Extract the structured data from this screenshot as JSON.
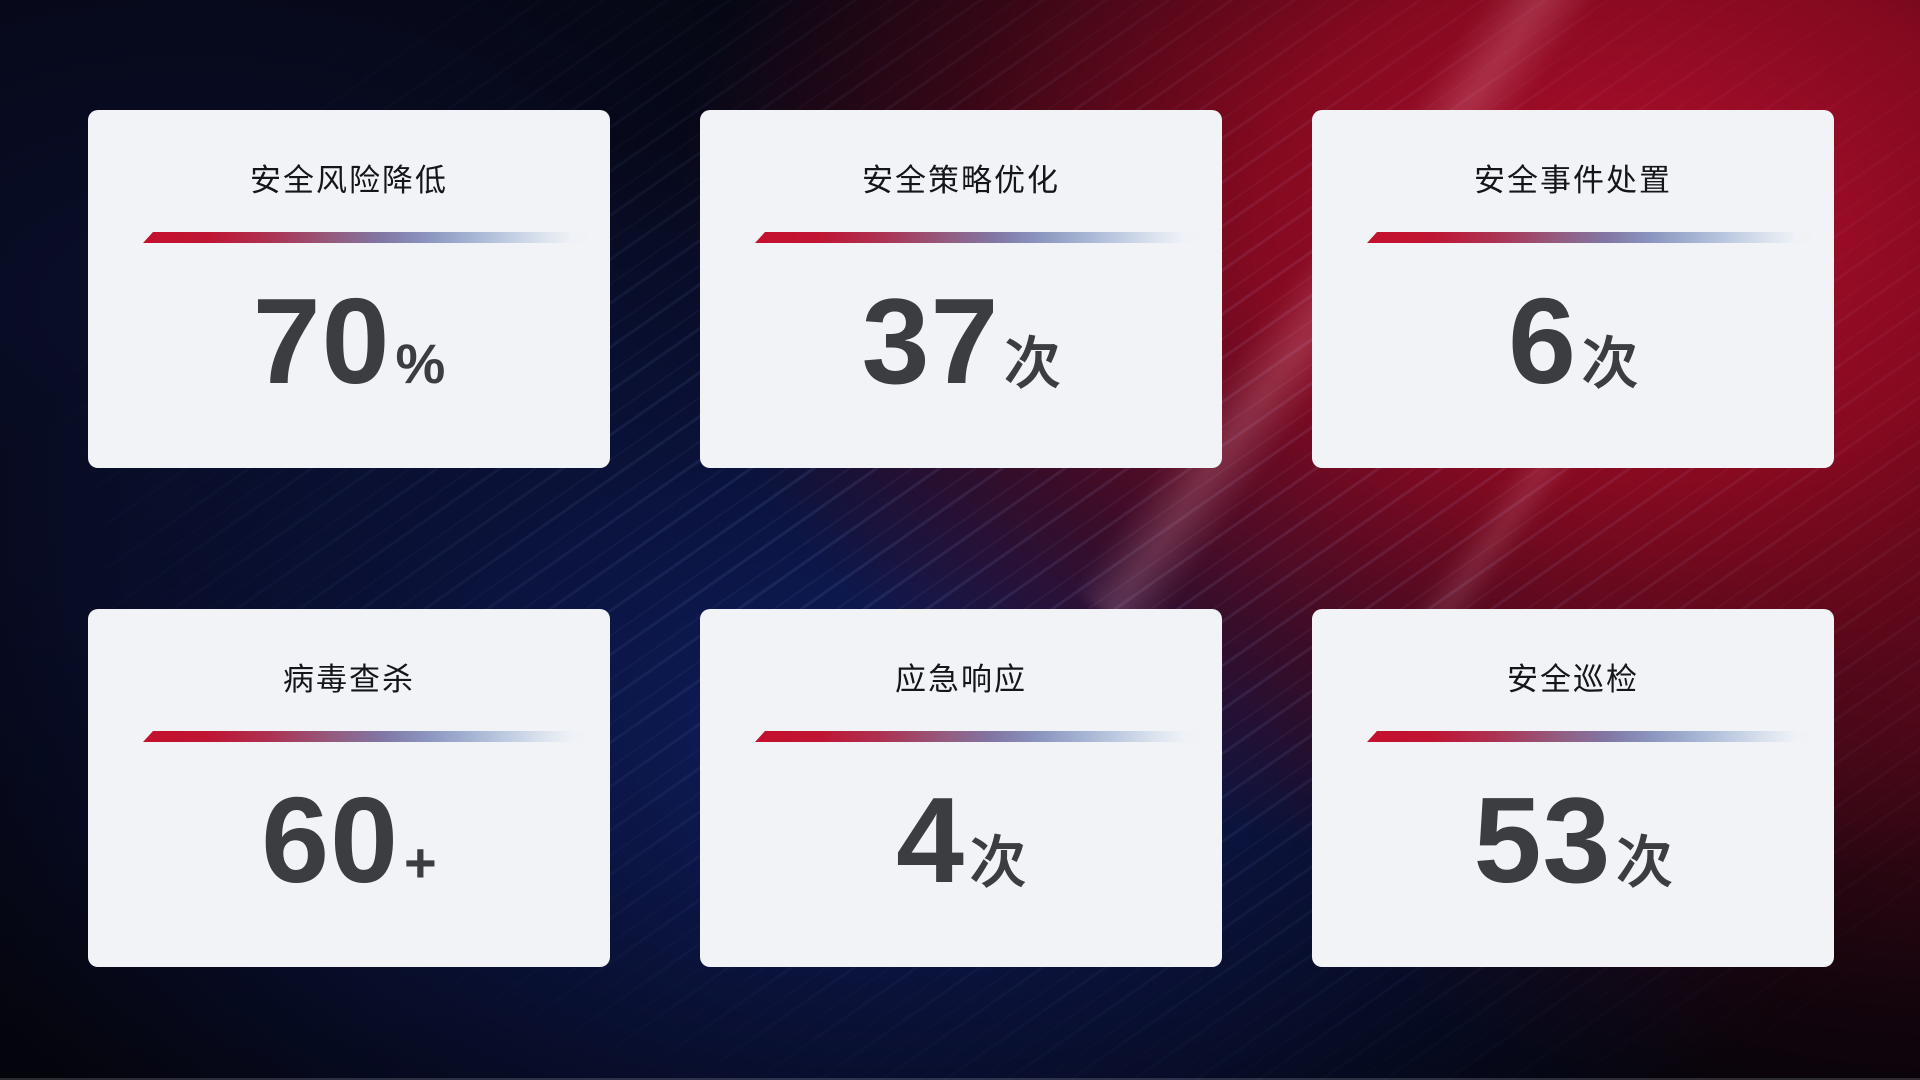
{
  "theme": {
    "card_background": "#F2F3F6",
    "title_color": "#15161A",
    "value_color": "#3C3D41",
    "divider_red": "#C5102E",
    "divider_light_blue": "#C3CFE3",
    "background_base": "#04040A",
    "background_red_glow": "#A00E28",
    "background_navy": "#11226C"
  },
  "cards": [
    {
      "title": "安全风险降低",
      "value": "70",
      "unit": "%"
    },
    {
      "title": "安全策略优化",
      "value": "37",
      "unit": "次"
    },
    {
      "title": "安全事件处置",
      "value": "6",
      "unit": "次"
    },
    {
      "title": "病毒查杀",
      "value": "60",
      "unit": "+"
    },
    {
      "title": "应急响应",
      "value": "4",
      "unit": "次"
    },
    {
      "title": "安全巡检",
      "value": "53",
      "unit": "次"
    }
  ]
}
